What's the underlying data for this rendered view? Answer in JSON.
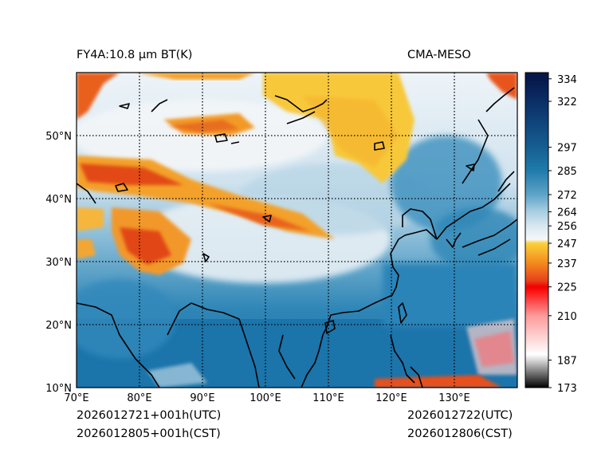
{
  "header": {
    "title_left": "FY4A:10.8 µm BT(K)",
    "title_right": "CMA-MESO"
  },
  "footer": {
    "init_utc": "2026012721+001h(UTC)",
    "init_cst": "2026012805+001h(CST)",
    "valid_utc": "2026012722(UTC)",
    "valid_cst": "2026012806(CST)"
  },
  "map": {
    "lon_range": [
      70,
      140
    ],
    "lat_range": [
      10,
      60
    ],
    "lon_labels": [
      "70°E",
      "80°E",
      "90°E",
      "100°E",
      "110°E",
      "120°E",
      "130°E"
    ],
    "lat_labels": [
      "10°N",
      "20°N",
      "30°N",
      "40°N",
      "50°N"
    ]
  },
  "colorbar": {
    "ticks": [
      "334",
      "322",
      "297",
      "285",
      "272",
      "264",
      "256",
      "247",
      "237",
      "225",
      "210",
      "187",
      "173"
    ],
    "stops": [
      {
        "value": 173,
        "color": "#000000"
      },
      {
        "value": 187,
        "color": "#d9d9d9"
      },
      {
        "value": 190,
        "color": "#ffffff"
      },
      {
        "value": 210,
        "color": "#ff9a9a"
      },
      {
        "value": 222,
        "color": "#ff1a1a"
      },
      {
        "value": 225,
        "color": "#f20000"
      },
      {
        "value": 228,
        "color": "#e8401a"
      },
      {
        "value": 237,
        "color": "#f28a1e"
      },
      {
        "value": 247,
        "color": "#fbd13a"
      },
      {
        "value": 249,
        "color": "#f5f7fa"
      },
      {
        "value": 256,
        "color": "#d8e7f0"
      },
      {
        "value": 264,
        "color": "#a9cfe2"
      },
      {
        "value": 272,
        "color": "#5ea4c8"
      },
      {
        "value": 285,
        "color": "#1f7bab"
      },
      {
        "value": 297,
        "color": "#165e92"
      },
      {
        "value": 322,
        "color": "#0b2e66"
      },
      {
        "value": 334,
        "color": "#06184a"
      }
    ]
  }
}
